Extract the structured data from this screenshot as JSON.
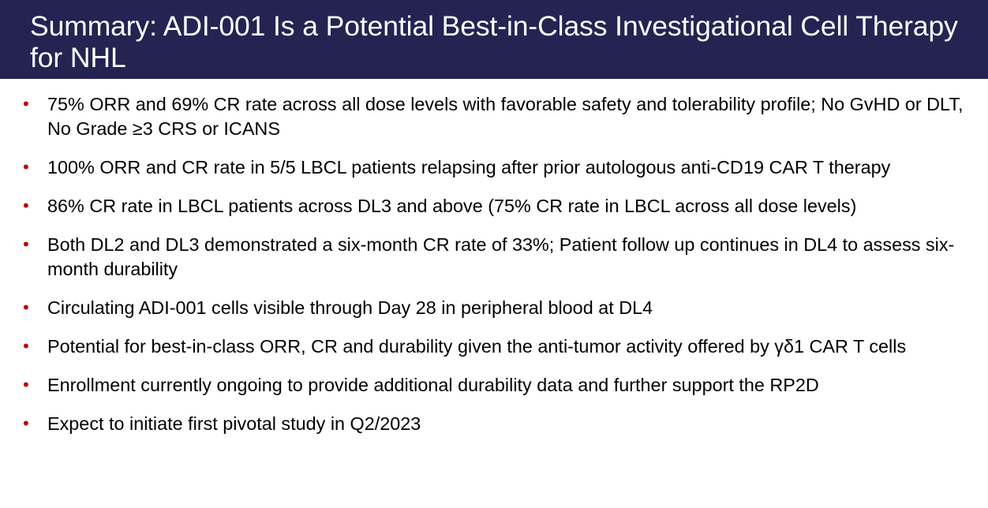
{
  "slide": {
    "title": "Summary: ADI-001 Is a Potential Best-in-Class Investigational Cell Therapy for NHL",
    "bullet_marker": "•",
    "bullets": [
      "75% ORR and 69% CR rate across all dose levels with favorable safety and tolerability profile; No GvHD or DLT, No Grade ≥3 CRS or ICANS",
      "100% ORR and CR rate in 5/5 LBCL patients relapsing after prior autologous anti-CD19 CAR T therapy",
      "86% CR rate in LBCL patients across DL3 and above (75% CR rate in LBCL across all dose levels)",
      "Both DL2 and DL3 demonstrated a six-month CR rate of 33%;  Patient follow up continues in DL4 to assess six-month durability",
      "Circulating ADI-001 cells visible through Day 28 in peripheral blood at DL4",
      "Potential for best-in-class ORR, CR and durability given the anti-tumor activity offered by γδ1 CAR T cells",
      "Enrollment currently ongoing to provide additional durability data and further support the RP2D",
      "Expect to initiate first pivotal study in Q2/2023"
    ]
  },
  "colors": {
    "title_bar": "#232452",
    "title_text": "#ffffff",
    "bullet_marker": "#c00000",
    "body_text": "#000000"
  }
}
